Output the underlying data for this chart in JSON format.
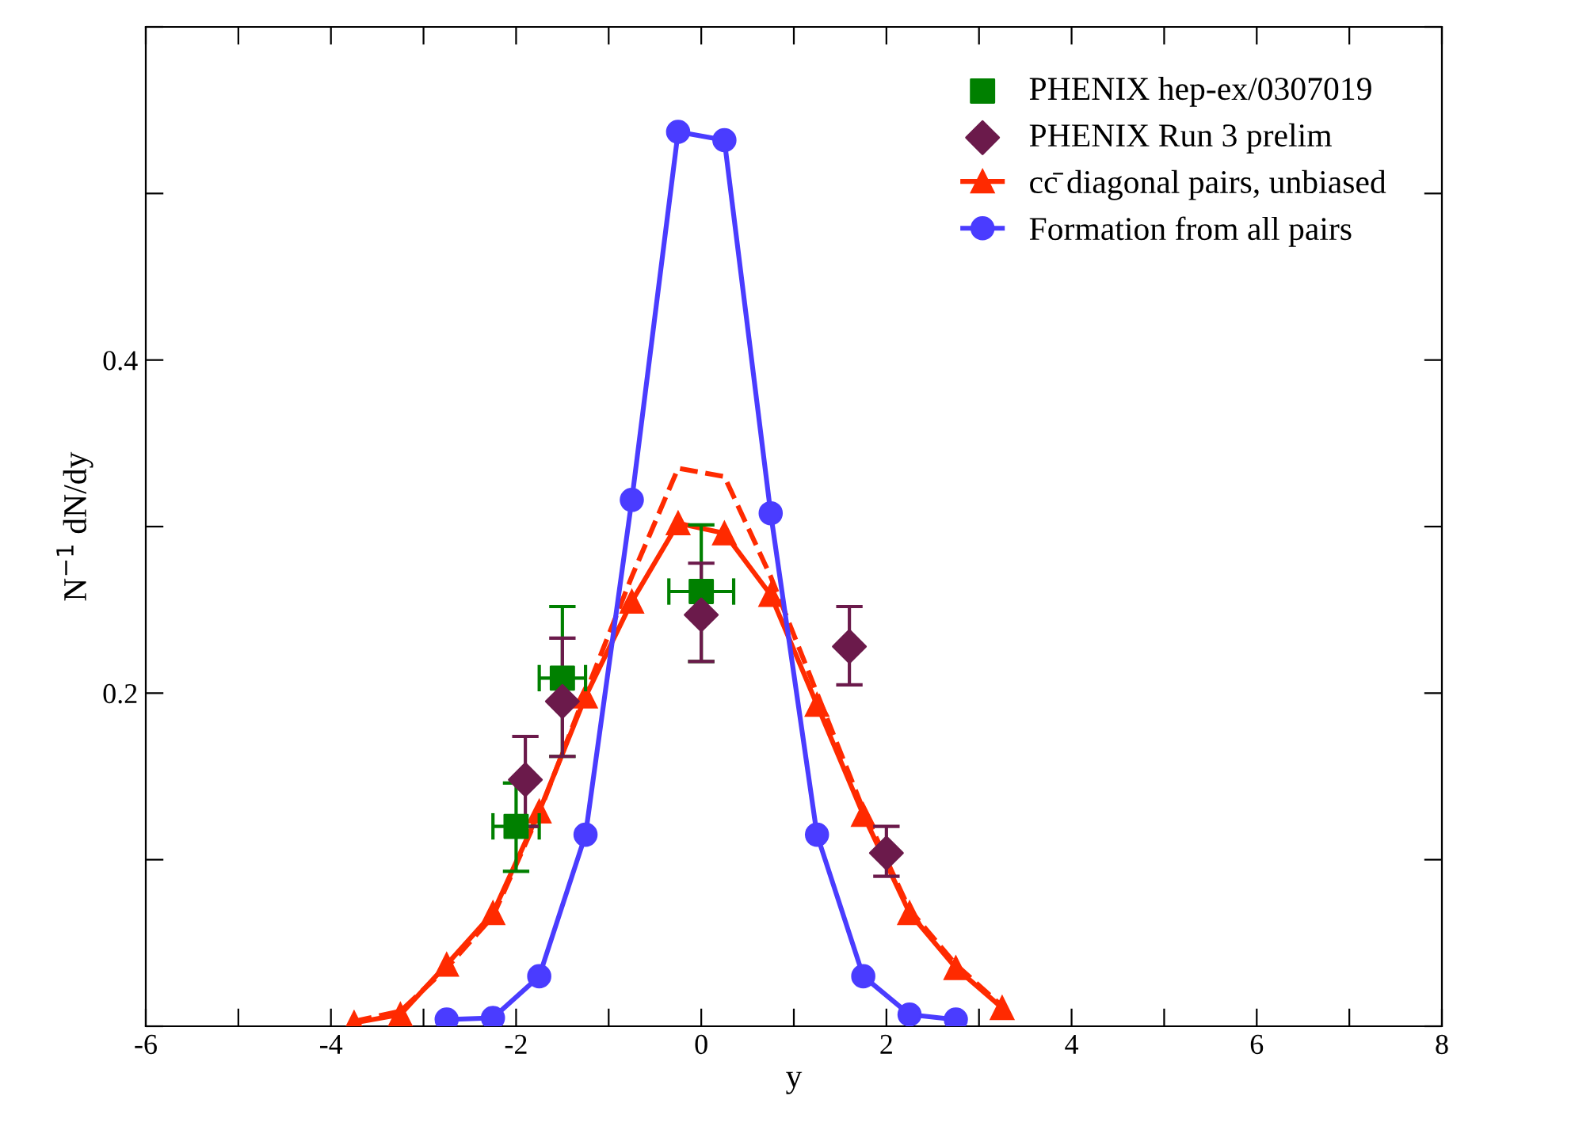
{
  "chart_data": {
    "type": "line",
    "xlabel": "y",
    "ylabel": "N$^{−1}$ dN/dy",
    "xlim": [
      -6,
      8
    ],
    "xticks": [
      -6,
      {
        "value": -5,
        "label": null
      },
      -4,
      {
        "value": -3,
        "label": null
      },
      -2,
      {
        "value": -1,
        "label": null
      },
      0,
      {
        "value": 1,
        "label": null
      },
      2,
      {
        "value": 3,
        "label": null
      },
      4,
      {
        "value": 5,
        "label": null
      },
      6,
      {
        "value": 7,
        "label": null
      },
      8
    ],
    "ylim": [
      0,
      0.6
    ],
    "yticks": [
      {
        "value": 0,
        "label": null
      },
      {
        "value": 0.1,
        "label": null
      },
      0.2,
      {
        "value": 0.3,
        "label": null
      },
      0.4,
      {
        "value": 0.5,
        "label": null
      },
      {
        "value": 0.6,
        "label": null
      }
    ],
    "grid": false,
    "legend": "top right",
    "series": [
      {
        "name": "PHENIX hep-ex/0307019",
        "type": "scatter",
        "marker": "square",
        "color": "#008000",
        "x": [
          -2,
          -1.5,
          0
        ],
        "values": [
          0.12,
          0.209,
          0.261
        ],
        "errors": [
          [
            0.093,
            0.146
          ],
          [
            0.162,
            0.252
          ],
          [
            0.219,
            0.301
          ]
        ],
        "xerrors": [
          0.25,
          0.25,
          0.35
        ]
      },
      {
        "name": "PHENIX Run 3 prelim",
        "type": "scatter",
        "marker": "diamond",
        "color": "#6b1a4b",
        "x": [
          -1.9,
          -1.5,
          0,
          1.6,
          2.0
        ],
        "values": [
          0.148,
          0.195,
          0.247,
          0.228,
          0.104
        ],
        "errors": [
          [
            0.12,
            0.174
          ],
          [
            0.162,
            0.233
          ],
          [
            0.219,
            0.278
          ],
          [
            0.205,
            0.252
          ],
          [
            0.09,
            0.12
          ]
        ]
      },
      {
        "marker": "none",
        "line_style": "dashed",
        "color": "#ff2a00",
        "x": [
          -3.75,
          -3.25,
          -2.75,
          -2.25,
          -1.75,
          -1.25,
          -0.75,
          -0.25,
          0.25,
          0.75,
          1.25,
          1.75,
          2.25,
          2.75,
          3.25
        ],
        "values": [
          0.003,
          0.009,
          0.035,
          0.066,
          0.128,
          0.2,
          0.27,
          0.335,
          0.33,
          0.27,
          0.2,
          0.13,
          0.07,
          0.037,
          0.012
        ]
      },
      {
        "name": "cc̄ diagonal pairs, unbiased",
        "marker": "triangle",
        "line_style": "solid",
        "color": "#ff2a00",
        "x": [
          -3.75,
          -3.25,
          -2.75,
          -2.25,
          -1.75,
          -1.25,
          -0.75,
          -0.25,
          0.25,
          0.75,
          1.25,
          1.75,
          2.25,
          2.75,
          3.25
        ],
        "values": [
          0.002,
          0.007,
          0.037,
          0.068,
          0.129,
          0.198,
          0.255,
          0.302,
          0.296,
          0.259,
          0.193,
          0.127,
          0.068,
          0.035,
          0.011
        ]
      },
      {
        "name": "Formation from all pairs",
        "marker": "circle",
        "line_style": "solid",
        "color": "#4a3cff",
        "x": [
          -2.75,
          -2.25,
          -1.75,
          -1.25,
          -0.75,
          -0.25,
          0.25,
          0.75,
          1.25,
          1.75,
          2.25,
          2.75
        ],
        "values": [
          0.004,
          0.005,
          0.03,
          0.115,
          0.316,
          0.537,
          0.532,
          0.308,
          0.115,
          0.03,
          0.007,
          0.004
        ]
      }
    ]
  }
}
